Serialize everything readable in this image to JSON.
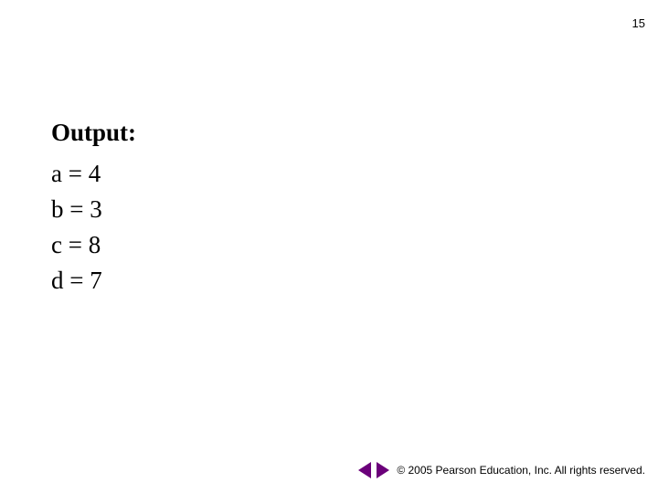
{
  "page_number": "15",
  "content": {
    "heading": "Output:",
    "lines": [
      "a = 4",
      "b = 3",
      "c = 8",
      "d = 7"
    ]
  },
  "footer": {
    "copyright": "© 2005 Pearson Education, Inc.  All rights reserved."
  },
  "style": {
    "background_color": "#ffffff",
    "text_color": "#000000",
    "heading_fontsize": 27,
    "heading_fontweight": "bold",
    "line_fontsize": 27,
    "page_number_fontsize": 13,
    "copyright_fontsize": 12,
    "nav_arrow_color": "#6b007a",
    "font_family_body": "Times New Roman",
    "font_family_ui": "Arial"
  }
}
